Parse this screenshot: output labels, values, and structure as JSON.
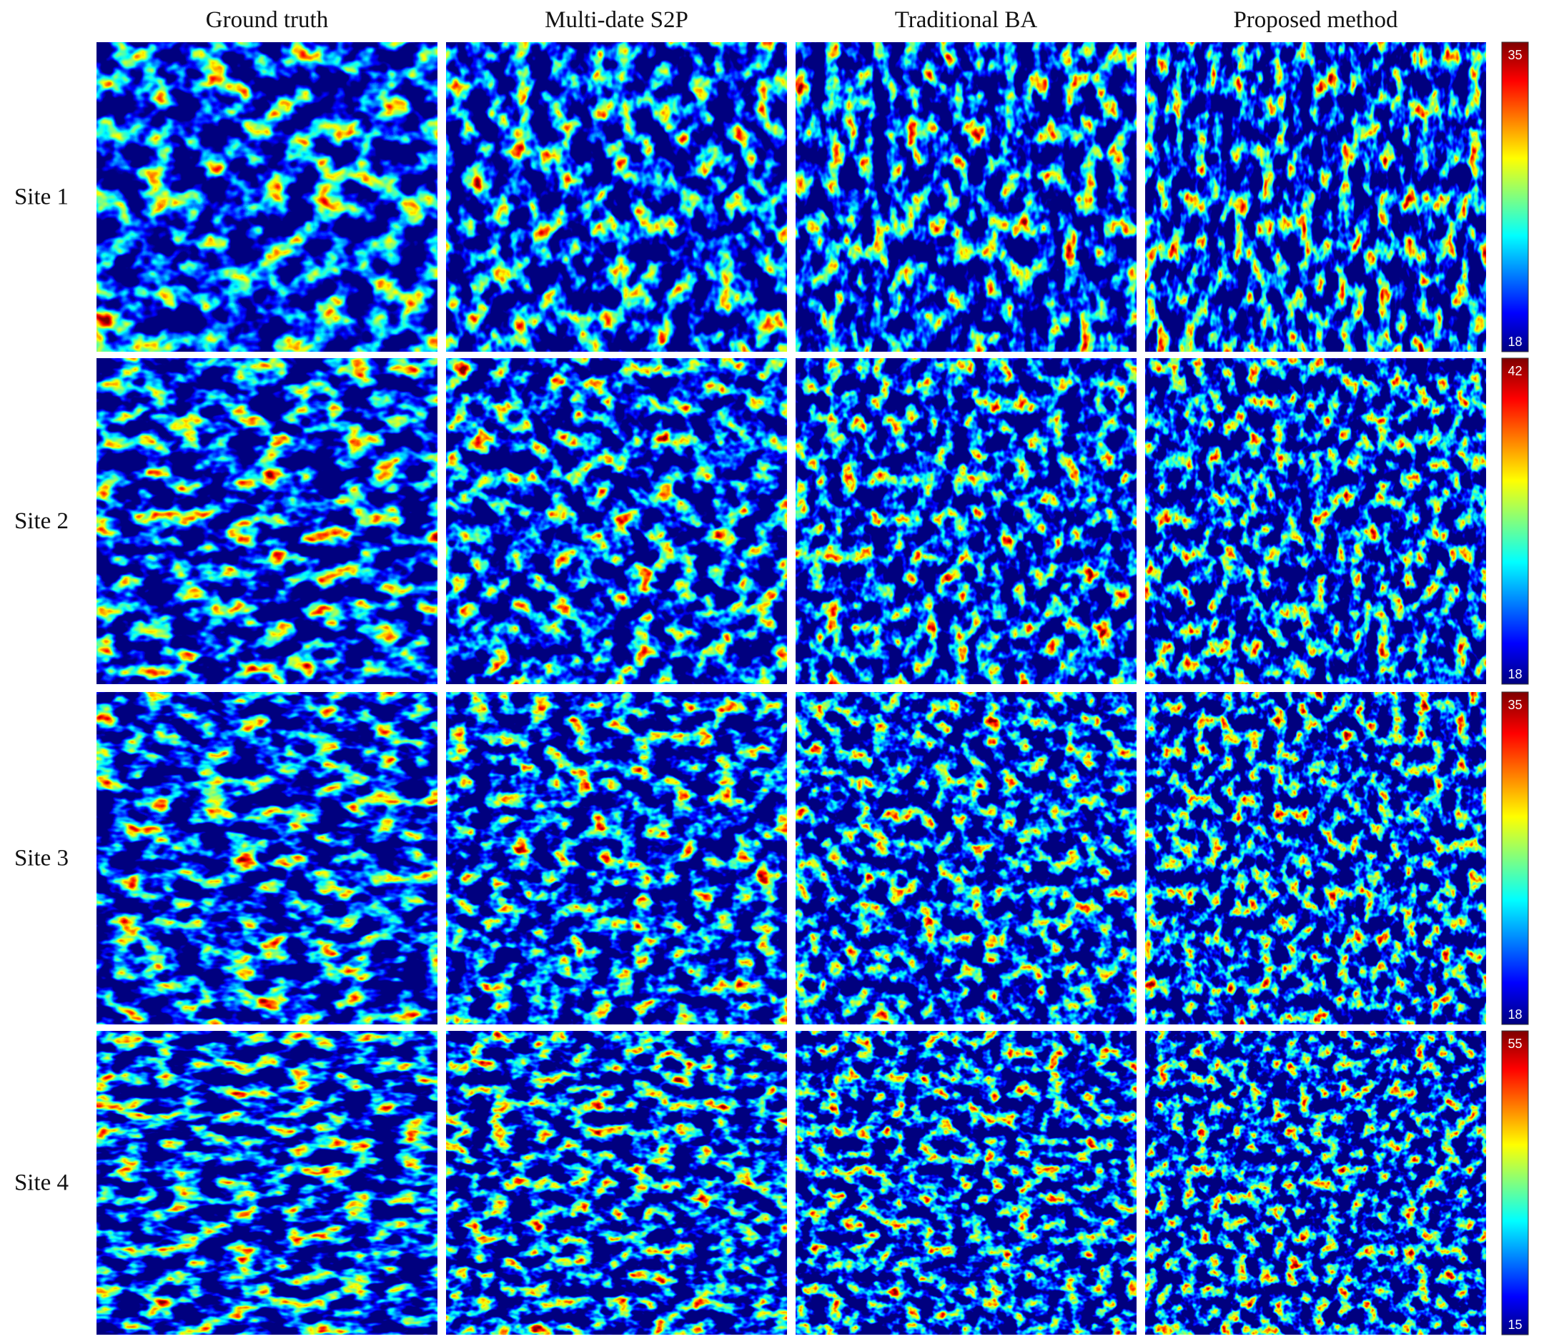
{
  "columns": [
    "Ground truth",
    "Multi-date S2P",
    "Traditional BA",
    "Proposed method"
  ],
  "rows": [
    {
      "label": "Site 1",
      "colorbar": {
        "max": 35,
        "min": 18
      }
    },
    {
      "label": "Site 2",
      "colorbar": {
        "max": 42,
        "min": 18
      }
    },
    {
      "label": "Site 3",
      "colorbar": {
        "max": 35,
        "min": 18
      }
    },
    {
      "label": "Site 4",
      "colorbar": {
        "max": 55,
        "min": 15
      }
    }
  ]
}
